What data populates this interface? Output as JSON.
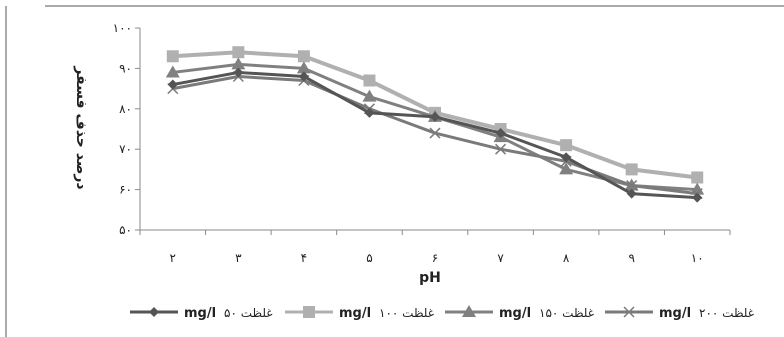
{
  "chart_data": {
    "type": "line",
    "xlabel": "pH",
    "ylabel": "درصد حذف فسفر",
    "categories": [
      "۲",
      "۳",
      "۴",
      "۵",
      "۶",
      "۷",
      "۸",
      "۹",
      "۱۰"
    ],
    "x": [
      2,
      3,
      4,
      5,
      6,
      7,
      8,
      9,
      10
    ],
    "ylim": [
      50,
      100
    ],
    "yticks": [
      50,
      60,
      70,
      80,
      90,
      100
    ],
    "ytick_labels": [
      "۵۰",
      "۶۰",
      "۷۰",
      "۸۰",
      "۹۰",
      "۱۰۰"
    ],
    "grid": false,
    "legend_position": "bottom",
    "series": [
      {
        "name": "غلظت ۵۰ mg/l",
        "label_text": "غلظت ۵۰",
        "label_unit": "mg/l",
        "color": "#555555",
        "marker": "diamond",
        "values": [
          86,
          89,
          88,
          79,
          78,
          74,
          68,
          59,
          58
        ]
      },
      {
        "name": "غلظت ۱۰۰ mg/l",
        "label_text": "غلظت ۱۰۰",
        "label_unit": "mg/l",
        "color": "#b0b0b0",
        "marker": "square",
        "values": [
          93,
          94,
          93,
          87,
          79,
          75,
          71,
          65,
          63
        ]
      },
      {
        "name": "غلظت ۱۵۰ mg/l",
        "label_text": "غلظت ۱۵۰",
        "label_unit": "mg/l",
        "color": "#808080",
        "marker": "triangle",
        "values": [
          89,
          91,
          90,
          83,
          78,
          73,
          65,
          61,
          60
        ]
      },
      {
        "name": "غلظت ۲۰۰ mg/l",
        "label_text": "غلظت ۲۰۰",
        "label_unit": "mg/l",
        "color": "#7a7a7a",
        "marker": "x",
        "values": [
          85,
          88,
          87,
          80,
          74,
          70,
          67,
          61,
          59
        ]
      }
    ]
  }
}
